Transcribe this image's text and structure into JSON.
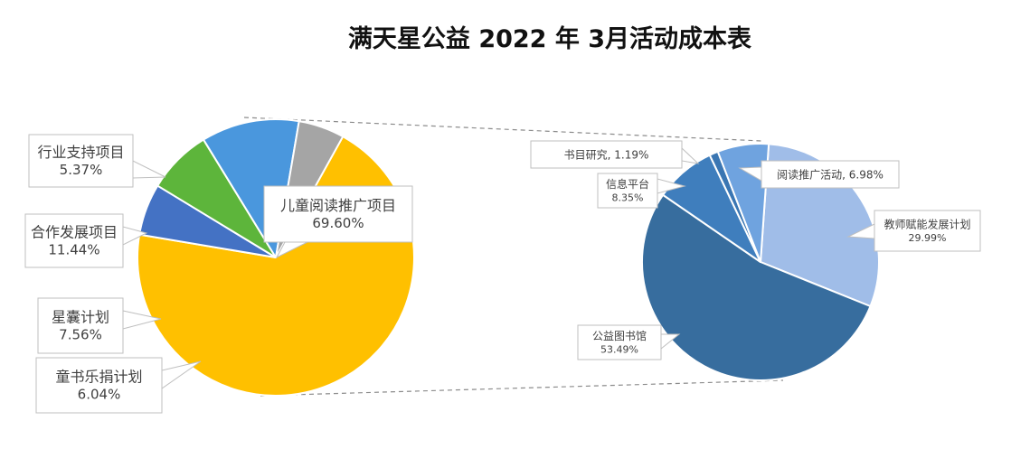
{
  "chart_data": {
    "type": "pie",
    "title": "满天星公益 2022 年 3月活动成本表",
    "main_pie": {
      "slices": [
        {
          "name": "儿童阅读推广项目",
          "value": 69.6,
          "label": "69.60%",
          "color": "#FFC000"
        },
        {
          "name": "童书乐捐计划",
          "value": 6.04,
          "label": "6.04%",
          "color": "#4472C4"
        },
        {
          "name": "星囊计划",
          "value": 7.56,
          "label": "7.56%",
          "color": "#5DB53B"
        },
        {
          "name": "合作发展项目",
          "value": 11.44,
          "label": "11.44%",
          "color": "#4A97DD"
        },
        {
          "name": "行业支持项目",
          "value": 5.37,
          "label": "5.37%",
          "color": "#A5A5A5"
        }
      ]
    },
    "secondary_pie": {
      "slices": [
        {
          "name": "教师赋能发展计划",
          "value": 29.99,
          "label": "29.99%",
          "color": "#A0BDE8"
        },
        {
          "name": "公益图书馆",
          "value": 53.49,
          "label": "53.49%",
          "color": "#376D9E"
        },
        {
          "name": "信息平台",
          "value": 8.35,
          "label": "8.35%",
          "color": "#3F7EBD"
        },
        {
          "name": "书目研究",
          "value": 1.19,
          "label": "1.19%",
          "color": "#3A76B3"
        },
        {
          "name": "阅读推广活动",
          "value": 6.98,
          "label": "6.98%",
          "color": "#6FA3DF"
        }
      ]
    },
    "legend": "none"
  }
}
